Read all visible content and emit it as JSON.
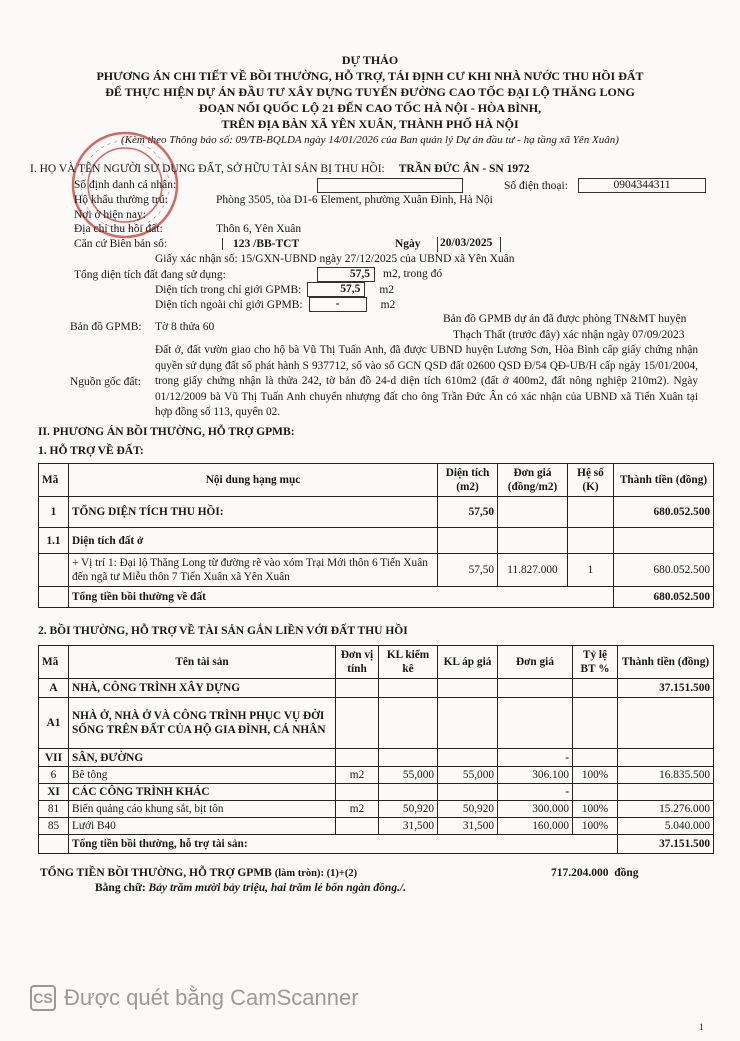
{
  "header": {
    "draft": "DỰ THẢO",
    "line1": "PHƯƠNG ÁN CHI TIẾT VỀ BỒI THƯỜNG, HỖ TRỢ, TÁI ĐỊNH CƯ KHI NHÀ NƯỚC THU HỒI ĐẤT",
    "line2": "ĐỂ THỰC HIỆN DỰ ÁN ĐẦU TƯ XÂY DỰNG TUYẾN ĐƯỜNG CAO TỐC ĐẠI LỘ THĂNG LONG",
    "line3": "ĐOẠN NỐI QUỐC LỘ 21 ĐẾN CAO TỐC HÀ NỘI - HÒA BÌNH,",
    "line4": "TRÊN ĐỊA BÀN XÃ YÊN XUÂN, THÀNH PHỐ HÀ NỘI",
    "note": "(Kèm theo Thông báo số: 09/TB-BQLDA ngày 14/01/2026 của Ban quản lý Dự án đầu tư - hạ tầng xã Yên Xuân)"
  },
  "stamp": {
    "text": "BAN QUẢN LÝ · XÃ YÊN XUÂN",
    "color": "#d0342c"
  },
  "section1": {
    "heading": "I. HỌ VÀ TÊN NGƯỜI SỬ DỤNG ĐẤT, SỞ HỮU TÀI SẢN BỊ THU HỒI:",
    "owner": "TRẦN ĐỨC ÂN - SN 1972",
    "id_label": "Số định danh cá nhân:",
    "id_value": "",
    "phone_label": "Số điện thoại:",
    "phone": "0904344311",
    "residence_label": "Hộ khẩu thường trú:",
    "residence": "Phòng 3505, tòa D1-6 Element, phường Xuân Đỉnh, Hà Nội",
    "current_label": "Nơi ở hiện nay:",
    "address_label": "Địa chỉ thu hồi đất:",
    "address": "Thôn 6, Yên Xuân",
    "record_label": "Căn cứ Biên bản số:",
    "record_no": "123  /BB-TCT",
    "date_label": "Ngày",
    "date": "20/03/2025",
    "confirmation": "Giấy xác nhận số: 15/GXN-UBND ngày 27/12/2025 của UBND xã Yên Xuân",
    "total_area_label": "Tổng diện tích đất đang sử dụng:",
    "total_area": "57,5",
    "total_area_unit": "m2, trong đó",
    "inside_label": "Diện tích trong chỉ giới GPMB:",
    "inside": "57,5",
    "outside_label": "Diện tích ngoài chỉ giới GPMB:",
    "outside": "-",
    "unit": "m2",
    "map_label": "Bản đồ GPMB:",
    "map_value": "Tờ 8 thửa 60",
    "map_note1": "Bản đồ GPMB dự án đã được phòng TN&MT huyện",
    "map_note2": "Thạch Thất (trước đây) xác nhận ngày 07/09/2023",
    "origin_label": "Nguồn gốc đất:",
    "origin": "Đất ở, đất vườn giao cho hộ bà Vũ Thị Tuấn Anh, đã được UBND huyện Lương Sơn, Hòa Bình cấp giấy chứng nhận quyền sử dụng đất số phát hành S 937712,  số vào sổ GCN QSD đất 02600 QSD Đ/54 QĐ-UB/H cấp ngày 15/01/2004, trong giấy chứng nhận là thửa 242, tờ bản đồ 24-d diện tích 610m2 (đất ở 400m2, đất nông nghiệp 210m2). Ngày 01/12/2009 bà Vũ Thị Tuấn Anh chuyển nhượng đất cho ông Trần Đức Ân có xác nhận của UBND xã Tiến Xuân tại hợp đồng số 113, quyển 02."
  },
  "section2": {
    "heading": "II. PHƯƠNG ÁN BỒI THƯỜNG, HỖ TRỢ GPMB:"
  },
  "land": {
    "heading": "1. HỖ TRỢ VỀ ĐẤT:",
    "columns": [
      "Mã",
      "Nội dung hạng mục",
      "Diện tích (m2)",
      "Đơn giá (đồng/m2)",
      "Hệ số (K)",
      "Thành tiền (đồng)"
    ],
    "rows": [
      [
        "1",
        "TỔNG DIỆN TÍCH THU HỒI:",
        "57,50",
        "",
        "",
        "680.052.500"
      ],
      [
        "1.1",
        "Diện tích đất ở",
        "",
        "",
        "",
        ""
      ],
      [
        "",
        "+ Vị trí 1: Đại lộ Thăng Long từ đường rẽ vào xóm Trại Mới thôn 6 Tiến Xuân đến ngã tư Miễu thôn 7 Tiến Xuân xã Yên Xuân",
        "57,50",
        "11.827.000",
        "1",
        "680.052.500"
      ]
    ],
    "total_label": "Tổng tiền bồi thường về đất",
    "total": "680.052.500"
  },
  "assets": {
    "heading": "2. BỒI THƯỜNG, HỖ TRỢ VỀ TÀI SẢN GẮN LIỀN VỚI ĐẤT THU HỒI",
    "columns": [
      "Mã",
      "Tên tài sản",
      "Đơn vị tính",
      "KL kiểm kê",
      "KL áp giá",
      "Đơn giá",
      "Tỷ lệ BT %",
      "Thành tiền (đồng)"
    ],
    "rows": [
      [
        "A",
        "NHÀ, CÔNG TRÌNH XÂY DỰNG",
        "",
        "",
        "",
        "",
        "",
        "37.151.500"
      ],
      [
        "A1",
        "NHÀ Ở, NHÀ Ở VÀ CÔNG TRÌNH PHỤC VỤ ĐỜI SỐNG TRÊN ĐẤT CỦA HỘ GIA ĐÌNH, CÁ NHÂN",
        "",
        "",
        "",
        "",
        "",
        ""
      ],
      [
        "VII",
        "SÂN, ĐƯỜNG",
        "",
        "",
        "",
        "-",
        "",
        ""
      ],
      [
        "6",
        "Bê tông",
        "m2",
        "55,000",
        "55,000",
        "306.100",
        "100%",
        "16.835.500"
      ],
      [
        "XI",
        "CÁC CÔNG TRÌNH KHÁC",
        "",
        "",
        "",
        "-",
        "",
        ""
      ],
      [
        "81",
        "Biển quảng cáo khung sắt, bịt tôn",
        "m2",
        "50,920",
        "50,920",
        "300.000",
        "100%",
        "15.276.000"
      ],
      [
        "85",
        "Lưới B40",
        "",
        "31,500",
        "31,500",
        "160.000",
        "100%",
        "5.040.000"
      ]
    ],
    "total_label": "Tổng tiền bồi thường, hỗ trợ tài sản:",
    "total": "37.151.500"
  },
  "summary": {
    "label": "TỔNG TIỀN BỒI THƯỜNG, HỖ TRỢ GPMB",
    "rounded": "(làm tròn): (1)+(2)",
    "amount": "717.204.000",
    "currency": "đồng",
    "words_label": "Bằng chữ:",
    "words": "Bảy trăm mười bảy triệu, hai trăm lẻ bốn ngàn đồng./."
  },
  "watermark": {
    "logo": "CS",
    "text": "Được quét bằng CamScanner"
  },
  "page_number": "1"
}
